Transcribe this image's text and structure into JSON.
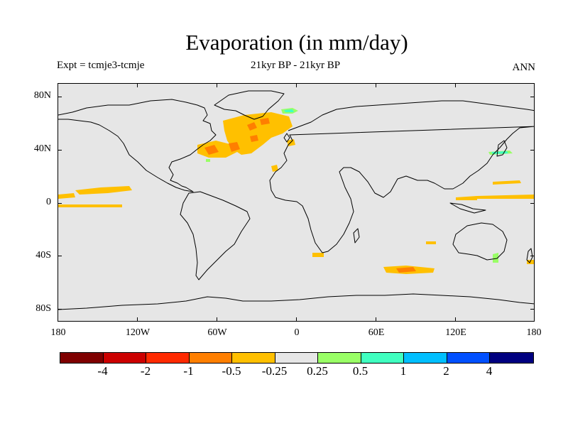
{
  "title": "Evaporation (in mm/day)",
  "expt_label": "Expt = tcmje3-tcmje",
  "period_label": "21kyr BP - 21kyr BP",
  "season_label": "ANN",
  "map": {
    "background_color": "#e6e6e6",
    "lat_ticks": [
      "80N",
      "40N",
      "0",
      "40S",
      "80S"
    ],
    "lon_ticks": [
      "180",
      "120W",
      "60W",
      "0",
      "60E",
      "120E",
      "180"
    ],
    "anomaly_colors": {
      "light_orange": "#ffc000",
      "orange": "#ff7f00",
      "light_green": "#99ff66",
      "cyan": "#40ffc0"
    }
  },
  "colorbar": {
    "colors": [
      "#7f0000",
      "#cc0000",
      "#ff2a00",
      "#ff7f00",
      "#ffc000",
      "#e6e6e6",
      "#99ff66",
      "#40ffc0",
      "#00bfff",
      "#0050ff",
      "#000080"
    ],
    "labels": [
      "-4",
      "-2",
      "-1",
      "-0.5",
      "-0.25",
      "0.25",
      "0.5",
      "1",
      "2",
      "4"
    ]
  }
}
